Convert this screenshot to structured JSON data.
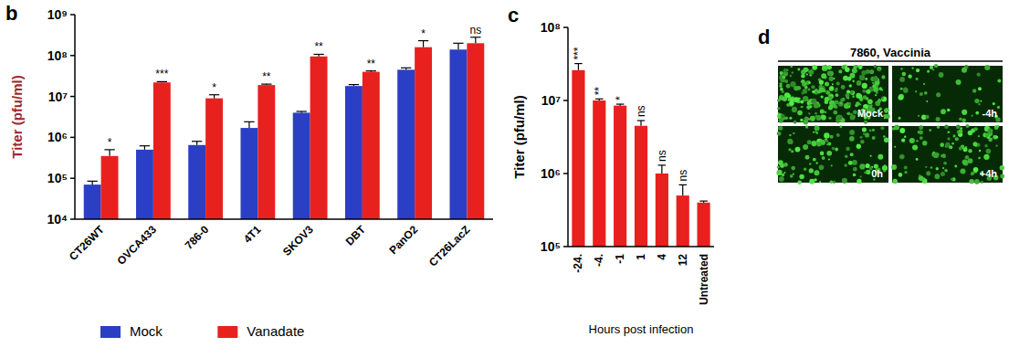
{
  "chart_data": [
    {
      "type": "bar",
      "panel": "b",
      "y_label": "Titer (pfu/ml)",
      "log": "y",
      "legend": "bottom",
      "categories": [
        "CT26WT",
        "OVCA433",
        "786-0",
        "4T1",
        "SKOV3",
        "DBT",
        "PanO2",
        "CT26LacZ"
      ],
      "series": [
        {
          "name": "Mock",
          "color": "#2b3fc4",
          "values": [
            70000,
            500000,
            650000,
            1700000,
            4000000,
            18000000,
            45000000,
            140000000
          ],
          "errors": [
            15000,
            120000,
            150000,
            700000,
            300000,
            1500000,
            5000000,
            60000000
          ]
        },
        {
          "name": "Vanadate",
          "color": "#e8211f",
          "values": [
            350000,
            22000000,
            9000000,
            19000000,
            95000000,
            40000000,
            160000000,
            200000000
          ],
          "errors": [
            150000,
            1000000,
            2000000,
            1000000,
            12000000,
            2000000,
            70000000,
            80000000
          ]
        }
      ],
      "annotations": [
        "*",
        "***",
        "*",
        "**",
        "**",
        "**",
        "*",
        "ns"
      ],
      "ylim": [
        10000,
        1000000000
      ],
      "yticks": [
        {
          "value": 10000,
          "label": "10⁴"
        },
        {
          "value": 100000,
          "label": "10⁵"
        },
        {
          "value": 1000000,
          "label": "10⁶"
        },
        {
          "value": 10000000,
          "label": "10⁷"
        },
        {
          "value": 100000000,
          "label": "10⁸"
        },
        {
          "value": 1000000000,
          "label": "10⁹"
        }
      ]
    },
    {
      "type": "bar",
      "panel": "c",
      "y_label": "Titer (pfu/ml)",
      "x_label": "Hours post infection",
      "log": "y",
      "color": "#e8211f",
      "categories": [
        "-24.",
        "-4.",
        "-1",
        "1",
        "4",
        "12",
        "Untreated"
      ],
      "values": [
        26000000,
        10000000,
        8500000,
        4500000,
        1000000,
        500000,
        400000
      ],
      "errors": [
        6000000,
        500000,
        400000,
        800000,
        300000,
        200000,
        20000
      ],
      "annotations": [
        "***",
        "**",
        "*",
        "ns",
        "ns",
        "ns",
        null
      ],
      "ylim": [
        100000,
        100000000
      ],
      "yticks": [
        {
          "value": 100000,
          "label": "10⁵"
        },
        {
          "value": 1000000,
          "label": "10⁶"
        },
        {
          "value": 10000000,
          "label": "10⁷"
        },
        {
          "value": 100000000,
          "label": "10⁸"
        }
      ]
    },
    {
      "type": "image_grid",
      "panel": "d",
      "title": "7860, Vaccinia",
      "panels": [
        "Mock",
        "-4h",
        "0h",
        "+4h"
      ]
    }
  ]
}
